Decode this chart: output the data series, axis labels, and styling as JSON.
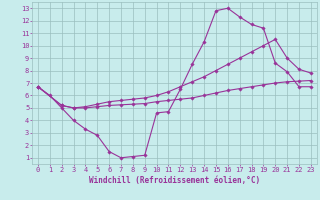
{
  "background_color": "#c8ecec",
  "grid_color": "#9bbfbf",
  "line_color": "#993399",
  "marker_color": "#993399",
  "xlabel": "Windchill (Refroidissement éolien,°C)",
  "xlim": [
    -0.5,
    23.5
  ],
  "ylim": [
    0.5,
    13.5
  ],
  "xticks": [
    0,
    1,
    2,
    3,
    4,
    5,
    6,
    7,
    8,
    9,
    10,
    11,
    12,
    13,
    14,
    15,
    16,
    17,
    18,
    19,
    20,
    21,
    22,
    23
  ],
  "yticks": [
    1,
    2,
    3,
    4,
    5,
    6,
    7,
    8,
    9,
    10,
    11,
    12,
    13
  ],
  "line1_x": [
    0,
    1,
    2,
    3,
    4,
    5,
    6,
    7,
    8,
    9,
    10,
    11,
    12,
    13,
    14,
    15,
    16,
    17,
    18,
    19,
    20,
    21,
    22,
    23
  ],
  "line1_y": [
    6.7,
    6.0,
    5.0,
    4.0,
    3.3,
    2.8,
    1.5,
    1.0,
    1.1,
    1.2,
    4.6,
    4.7,
    6.5,
    8.5,
    10.3,
    12.8,
    13.0,
    12.3,
    11.7,
    11.4,
    8.6,
    7.9,
    6.7,
    6.7
  ],
  "line2_x": [
    0,
    2,
    3,
    4,
    5,
    6,
    7,
    8,
    9,
    10,
    11,
    12,
    13,
    14,
    15,
    16,
    17,
    18,
    19,
    20,
    21,
    22,
    23
  ],
  "line2_y": [
    6.7,
    5.2,
    5.0,
    5.0,
    5.1,
    5.2,
    5.25,
    5.3,
    5.35,
    5.5,
    5.6,
    5.7,
    5.8,
    6.0,
    6.2,
    6.4,
    6.55,
    6.7,
    6.85,
    7.0,
    7.1,
    7.15,
    7.2
  ],
  "line3_x": [
    0,
    2,
    3,
    4,
    5,
    6,
    7,
    8,
    9,
    10,
    11,
    12,
    13,
    14,
    15,
    16,
    17,
    18,
    19,
    20,
    21,
    22,
    23
  ],
  "line3_y": [
    6.7,
    5.2,
    5.0,
    5.1,
    5.3,
    5.5,
    5.6,
    5.7,
    5.8,
    6.0,
    6.3,
    6.7,
    7.1,
    7.5,
    8.0,
    8.5,
    9.0,
    9.5,
    10.0,
    10.5,
    9.0,
    8.1,
    7.8
  ],
  "label_fontsize": 5.5,
  "tick_fontsize": 5.0
}
